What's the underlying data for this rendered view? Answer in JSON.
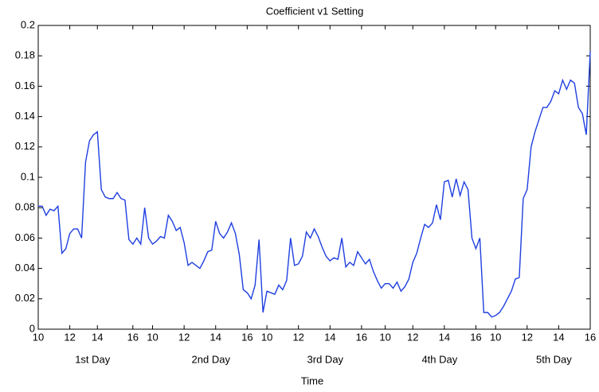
{
  "chart_data": {
    "type": "line",
    "title": "Coefficient v1 Setting",
    "x_label": "Time",
    "day_labels": [
      "1st Day",
      "2nd Day",
      "3rd Day",
      "4th Day",
      "5th Day"
    ],
    "x": [
      0,
      1,
      2,
      3,
      4,
      5,
      6,
      7,
      8,
      9,
      10,
      11,
      12,
      13,
      14,
      15,
      16,
      17,
      18,
      19,
      20,
      21,
      22,
      23,
      24,
      25,
      26,
      27,
      28,
      29,
      30,
      31,
      32,
      33,
      34,
      35,
      36,
      37,
      38,
      39,
      40,
      41,
      42,
      43,
      44,
      45,
      46,
      47,
      48,
      49,
      50,
      51,
      52,
      53,
      54,
      55,
      56,
      57,
      58,
      59,
      60,
      61,
      62,
      63,
      64,
      65,
      66,
      67,
      68,
      69,
      70,
      71,
      72,
      73,
      74,
      75,
      76,
      77,
      78,
      79,
      80,
      81,
      82,
      83,
      84,
      85,
      86,
      87,
      88,
      89,
      90,
      91,
      92,
      93,
      94,
      95,
      96,
      97,
      98,
      99,
      100,
      101,
      102,
      103,
      104,
      105,
      106,
      107,
      108,
      109,
      110,
      111,
      112,
      113,
      114,
      115,
      116,
      117,
      118,
      119,
      120,
      121,
      122,
      123,
      124,
      125,
      126,
      127,
      128,
      129,
      130,
      131,
      132,
      133,
      134,
      135,
      136,
      137,
      138,
      139,
      140
    ],
    "series": [
      {
        "color": "#1f3fe0",
        "values": [
          0.081,
          0.081,
          0.075,
          0.079,
          0.078,
          0.081,
          0.05,
          0.053,
          0.063,
          0.066,
          0.066,
          0.06,
          0.11,
          0.124,
          0.128,
          0.13,
          0.092,
          0.087,
          0.086,
          0.086,
          0.09,
          0.086,
          0.085,
          0.059,
          0.056,
          0.06,
          0.056,
          0.08,
          0.06,
          0.056,
          0.058,
          0.061,
          0.06,
          0.075,
          0.071,
          0.065,
          0.067,
          0.057,
          0.042,
          0.044,
          0.042,
          0.04,
          0.045,
          0.051,
          0.052,
          0.071,
          0.063,
          0.06,
          0.064,
          0.07,
          0.063,
          0.049,
          0.026,
          0.024,
          0.02,
          0.029,
          0.059,
          0.011,
          0.025,
          0.024,
          0.023,
          0.029,
          0.026,
          0.032,
          0.06,
          0.042,
          0.043,
          0.048,
          0.064,
          0.06,
          0.066,
          0.061,
          0.054,
          0.048,
          0.045,
          0.047,
          0.046,
          0.06,
          0.041,
          0.044,
          0.042,
          0.051,
          0.047,
          0.043,
          0.046,
          0.038,
          0.032,
          0.027,
          0.03,
          0.03,
          0.027,
          0.031,
          0.025,
          0.028,
          0.033,
          0.044,
          0.05,
          0.06,
          0.069,
          0.067,
          0.07,
          0.082,
          0.072,
          0.097,
          0.098,
          0.087,
          0.099,
          0.088,
          0.097,
          0.092,
          0.06,
          0.053,
          0.06,
          0.011,
          0.011,
          0.008,
          0.009,
          0.011,
          0.015,
          0.02,
          0.025,
          0.033,
          0.034,
          0.086,
          0.092,
          0.12,
          0.13,
          0.138,
          0.146,
          0.146,
          0.15,
          0.157,
          0.155,
          0.164,
          0.158,
          0.164,
          0.162,
          0.146,
          0.142,
          0.128,
          0.183
        ]
      }
    ],
    "xlim": [
      0,
      140
    ],
    "ylim": [
      0,
      0.2
    ],
    "yticks": [
      0,
      0.02,
      0.04,
      0.06,
      0.08,
      0.1,
      0.12,
      0.14,
      0.16,
      0.18,
      0.2
    ],
    "xticks": [
      {
        "value": 0,
        "label": "10"
      },
      {
        "value": 8,
        "label": "12"
      },
      {
        "value": 15,
        "label": "14"
      },
      {
        "value": 24,
        "label": "16"
      },
      {
        "value": 29,
        "label": "10"
      },
      {
        "value": 37,
        "label": "12"
      },
      {
        "value": 45,
        "label": "14"
      },
      {
        "value": 53,
        "label": "16"
      },
      {
        "value": 58,
        "label": "10"
      },
      {
        "value": 66,
        "label": "12"
      },
      {
        "value": 74,
        "label": "14"
      },
      {
        "value": 82,
        "label": "16"
      },
      {
        "value": 88,
        "label": "10"
      },
      {
        "value": 95,
        "label": "12"
      },
      {
        "value": 103,
        "label": "14"
      },
      {
        "value": 111,
        "label": "16"
      },
      {
        "value": 116,
        "label": "10"
      },
      {
        "value": 124,
        "label": "12"
      },
      {
        "value": 132,
        "label": "14"
      },
      {
        "value": 140,
        "label": "16"
      }
    ],
    "grid": false
  }
}
